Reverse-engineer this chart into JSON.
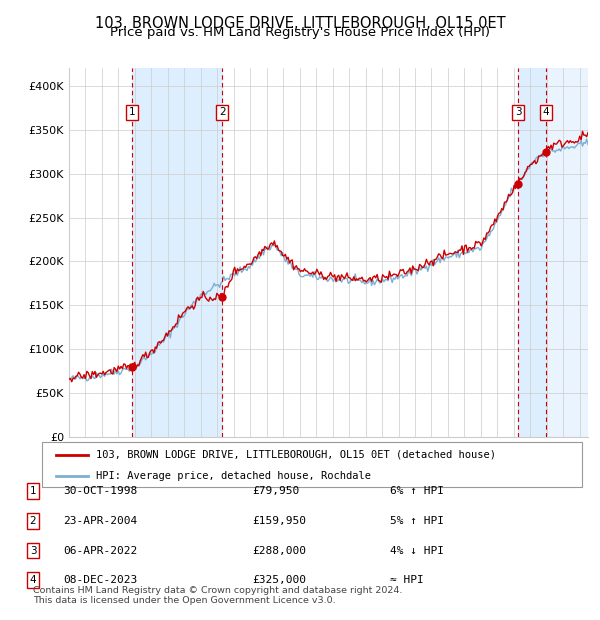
{
  "title1": "103, BROWN LODGE DRIVE, LITTLEBOROUGH, OL15 0ET",
  "title2": "Price paid vs. HM Land Registry's House Price Index (HPI)",
  "hpi_label": "HPI: Average price, detached house, Rochdale",
  "property_label": "103, BROWN LODGE DRIVE, LITTLEBOROUGH, OL15 0ET (detached house)",
  "footer1": "Contains HM Land Registry data © Crown copyright and database right 2024.",
  "footer2": "This data is licensed under the Open Government Licence v3.0.",
  "sales": [
    {
      "num": 1,
      "date": "30-OCT-1998",
      "price": 79950,
      "year": 1998.83,
      "rel": "6% ↑ HPI"
    },
    {
      "num": 2,
      "date": "23-APR-2004",
      "price": 159950,
      "year": 2004.31,
      "rel": "5% ↑ HPI"
    },
    {
      "num": 3,
      "date": "06-APR-2022",
      "price": 288000,
      "year": 2022.26,
      "rel": "4% ↓ HPI"
    },
    {
      "num": 4,
      "date": "08-DEC-2023",
      "price": 325000,
      "year": 2023.93,
      "rel": "≈ HPI"
    }
  ],
  "xmin": 1995.0,
  "xmax": 2026.5,
  "ymin": 0,
  "ymax": 420000,
  "yticks": [
    0,
    50000,
    100000,
    150000,
    200000,
    250000,
    300000,
    350000,
    400000
  ],
  "ytick_labels": [
    "£0",
    "£50K",
    "£100K",
    "£150K",
    "£200K",
    "£250K",
    "£300K",
    "£350K",
    "£400K"
  ],
  "property_color": "#cc0000",
  "hpi_color": "#7bafd4",
  "grid_color": "#cccccc",
  "bg_color": "#ffffff",
  "shade_color": "#ddeeff",
  "vline_color": "#cc0000",
  "marker_color": "#cc0000",
  "title_fontsize": 10.5,
  "subtitle_fontsize": 9.5
}
